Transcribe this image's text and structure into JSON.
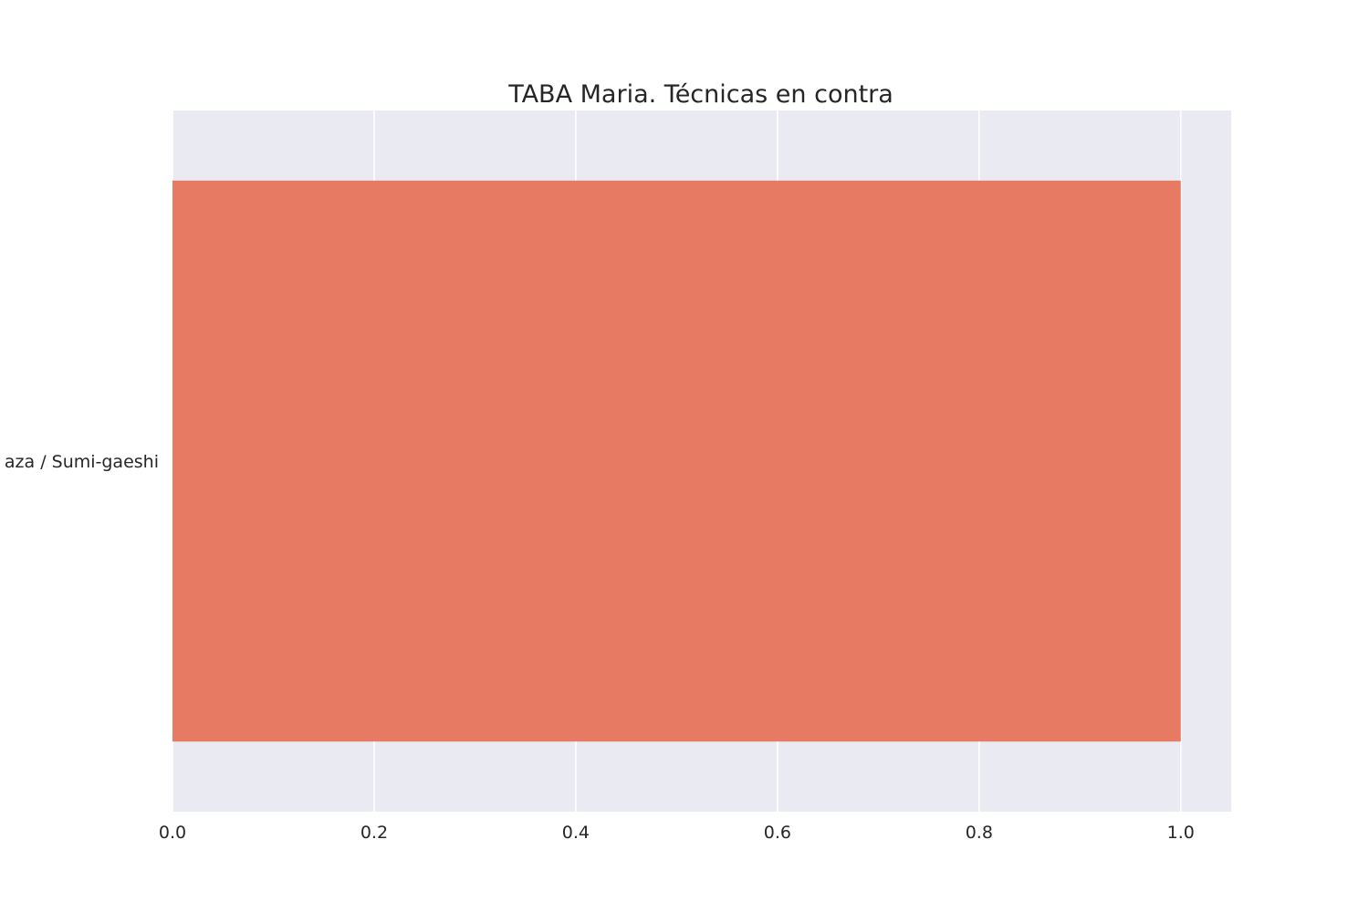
{
  "chart_data": {
    "type": "bar",
    "orientation": "horizontal",
    "title": "TABA Maria. Técnicas en contra",
    "xlabel": "",
    "ylabel": "",
    "categories": [
      "aza / Sumi-gaeshi"
    ],
    "values": [
      1.0
    ],
    "xlim": [
      0,
      1.05
    ],
    "xticks": [
      0.0,
      0.2,
      0.4,
      0.6,
      0.8,
      1.0
    ],
    "xtick_labels": [
      "0.0",
      "0.2",
      "0.4",
      "0.6",
      "0.8",
      "1.0"
    ],
    "grid": true,
    "colors": {
      "bar": "#e67a63",
      "plot_background": "#eaeaf2",
      "grid": "#ffffff",
      "text": "#262626"
    }
  }
}
